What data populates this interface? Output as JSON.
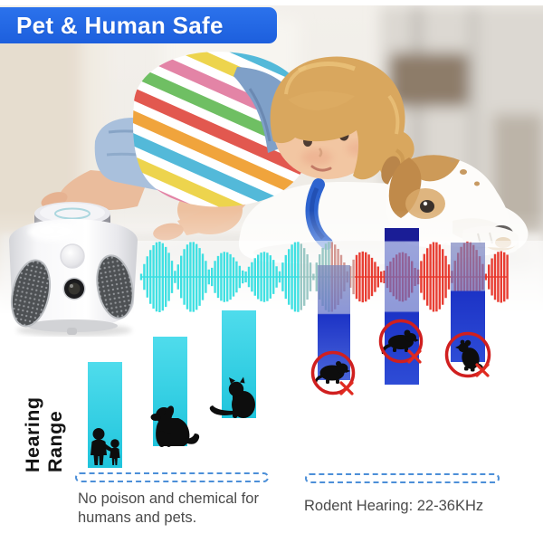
{
  "banner": {
    "title": "Pet & Human Safe",
    "bg_color": "#2168e8",
    "text_color": "#ffffff"
  },
  "photo": {
    "description": "Toddler in rainbow striped shirt and denim shorts hugging a white dog with tan patches and blue collar, lying on a bright floor"
  },
  "device": {
    "name": "ultrasonic pest repeller",
    "colors": {
      "body": "#f4f4f6",
      "grille": "#4e5154",
      "lens": "#1b1b1d"
    }
  },
  "wave": {
    "description": "ultrasonic sound wave",
    "safe_color": "#35dee0",
    "muted_color": "#8fc2bf",
    "rodent_color": "#e73327"
  },
  "hearing_chart": {
    "axis_label": "Hearing Range",
    "groups": [
      {
        "name": "safe",
        "bar_color": "#2ccfe2",
        "subjects": [
          "humans",
          "dog",
          "cat"
        ],
        "status": "not affected"
      },
      {
        "name": "rodents",
        "bar_color": "#1c33c6",
        "subjects": [
          "rodent",
          "mouse",
          "rat"
        ],
        "status": "repelled (crossed out)"
      }
    ]
  },
  "captions": {
    "left_line1": "No poison and chemical for",
    "left_line2": "humans and pets.",
    "right": "Rodent Hearing: 22-36KHz"
  },
  "icons": {
    "family": "adult-and-child-silhouette",
    "dog": "sitting-dog-silhouette",
    "cat": "sitting-cat-silhouette",
    "rodent": "rodent-silhouette-in-red-no-circle",
    "colors": {
      "circle_red": "#d01f1f",
      "x_red": "#e02a20",
      "dash_blue": "#4c8fd8"
    }
  }
}
